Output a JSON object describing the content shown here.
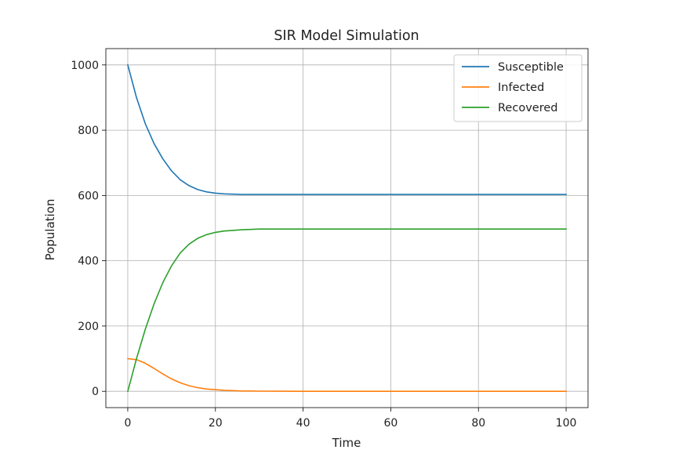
{
  "chart_data": {
    "type": "line",
    "title": "SIR Model Simulation",
    "xlabel": "Time",
    "ylabel": "Population",
    "xlim": [
      -5,
      105
    ],
    "ylim": [
      -50,
      1050
    ],
    "xticks": [
      "0",
      "20",
      "40",
      "60",
      "80",
      "100"
    ],
    "yticks": [
      "0",
      "200",
      "400",
      "600",
      "800",
      "1000"
    ],
    "grid": true,
    "legend_position": "top-right",
    "x": [
      0,
      2,
      4,
      6,
      8,
      10,
      12,
      14,
      16,
      18,
      20,
      22,
      24,
      26,
      28,
      30,
      35,
      40,
      50,
      60,
      70,
      80,
      90,
      100
    ],
    "series": [
      {
        "name": "Susceptible",
        "color": "#1f77b4",
        "values": [
          1000,
          900,
          820,
          759,
          712,
          675,
          648,
          630,
          618,
          611,
          607,
          605,
          604,
          603,
          603,
          603,
          603,
          603,
          603,
          603,
          603,
          603,
          603,
          603
        ]
      },
      {
        "name": "Infected",
        "color": "#ff7f0e",
        "values": [
          100,
          97,
          86,
          70,
          53,
          38,
          26,
          17,
          11,
          7,
          5,
          3,
          2,
          1,
          1,
          0.5,
          0.2,
          0,
          0,
          0,
          0,
          0,
          0,
          0
        ]
      },
      {
        "name": "Recovered",
        "color": "#2ca02c",
        "values": [
          0,
          100,
          190,
          268,
          333,
          385,
          424,
          451,
          469,
          480,
          487,
          491,
          493,
          495,
          496,
          497,
          497,
          497,
          497,
          497,
          497,
          497,
          497,
          497
        ]
      }
    ]
  }
}
